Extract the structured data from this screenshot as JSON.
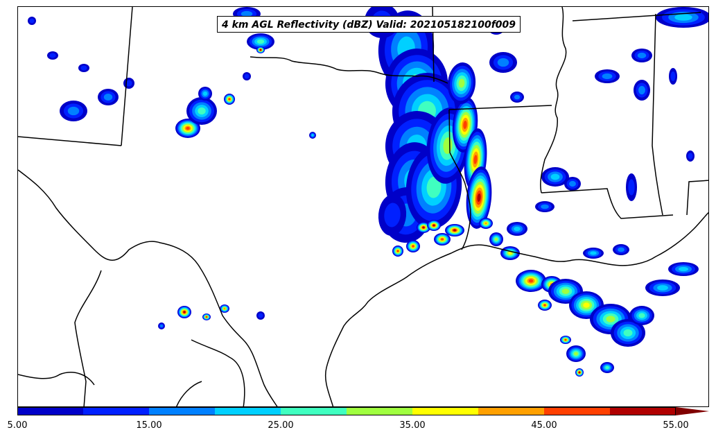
{
  "title": "4 km AGL Reflectivity (dBZ) Valid: 202105182100f009",
  "colorbar": {
    "colors": [
      "#0000c8",
      "#0020ff",
      "#0080ff",
      "#00d0ff",
      "#40ffc0",
      "#a0ff40",
      "#ffff00",
      "#ffa000",
      "#ff4000",
      "#b00000"
    ],
    "extend_color": "#800000",
    "tick_labels": [
      "5.00",
      "15.00",
      "25.00",
      "35.00",
      "45.00",
      "55.00"
    ]
  },
  "map": {
    "line_color": "#000000"
  }
}
